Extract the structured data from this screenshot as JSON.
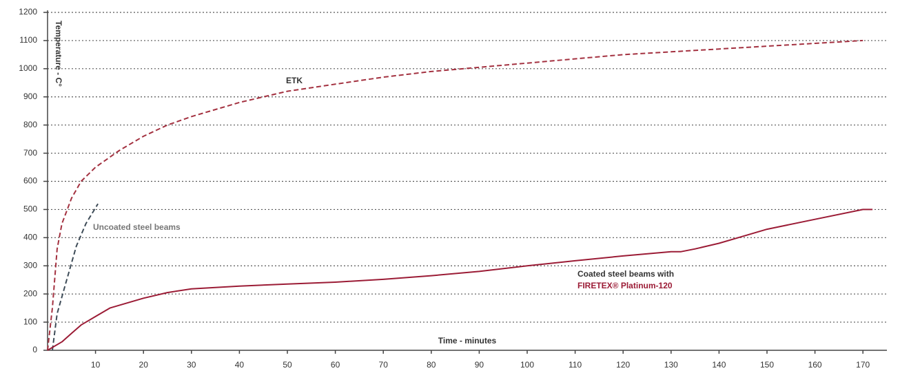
{
  "chart_data": {
    "type": "line",
    "x_label": "Time - minutes",
    "y_label": "Temperature - C°",
    "xlim": [
      0,
      175
    ],
    "xticks": [
      10,
      20,
      30,
      40,
      50,
      60,
      70,
      80,
      90,
      100,
      110,
      120,
      130,
      140,
      150,
      160,
      170
    ],
    "ylim": [
      0,
      1200
    ],
    "yticks": [
      0,
      100,
      200,
      300,
      400,
      500,
      600,
      700,
      800,
      900,
      1000,
      1100,
      1200
    ],
    "grid": true,
    "series": [
      {
        "name": "ETK",
        "color": "#a3303f",
        "dashed": true,
        "x": [
          0,
          1,
          2,
          3,
          5,
          7,
          10,
          15,
          20,
          25,
          30,
          40,
          50,
          60,
          70,
          80,
          90,
          100,
          110,
          120,
          130,
          140,
          150,
          160,
          170
        ],
        "values": [
          0,
          150,
          360,
          450,
          540,
          600,
          650,
          710,
          760,
          800,
          830,
          880,
          920,
          945,
          970,
          990,
          1005,
          1020,
          1035,
          1050,
          1060,
          1070,
          1080,
          1090,
          1100
        ]
      },
      {
        "name": "Uncoated steel beams",
        "color": "#3d4b57",
        "dashed": true,
        "x": [
          1,
          2,
          4,
          6,
          8,
          10.5
        ],
        "values": [
          0,
          130,
          250,
          370,
          450,
          520
        ]
      },
      {
        "name": "Coated steel beams with",
        "color": "#9b1b35",
        "dashed": false,
        "x": [
          0,
          3,
          5,
          7,
          10,
          13,
          20,
          25,
          30,
          40,
          50,
          60,
          70,
          80,
          90,
          100,
          110,
          120,
          130,
          132,
          135,
          140,
          145,
          150,
          160,
          170,
          172
        ],
        "values": [
          0,
          30,
          60,
          90,
          120,
          150,
          185,
          205,
          218,
          228,
          235,
          242,
          252,
          265,
          280,
          300,
          318,
          335,
          350,
          350,
          360,
          380,
          405,
          430,
          465,
          500,
          500
        ]
      }
    ],
    "annotations": [
      "FIRETEX® Platinum-120"
    ]
  }
}
